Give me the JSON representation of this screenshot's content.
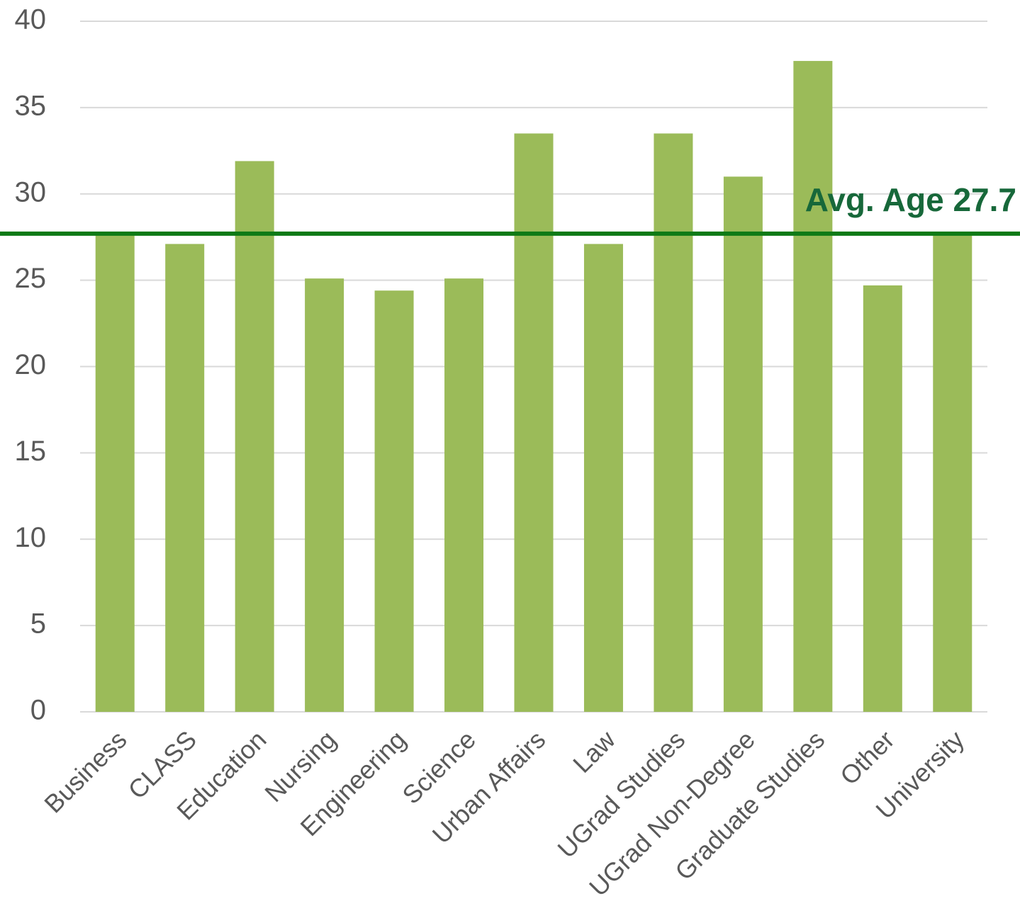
{
  "chart_data": {
    "type": "bar",
    "categories": [
      "Business",
      "CLASS",
      "Education",
      "Nursing",
      "Engineering",
      "Science",
      "Urban Affairs",
      "Law",
      "UGrad Studies",
      "UGrad Non-Degree",
      "Graduate Studies",
      "Other",
      "University"
    ],
    "values": [
      27.7,
      27.1,
      31.9,
      25.1,
      24.4,
      25.1,
      33.5,
      27.1,
      33.5,
      31.0,
      37.7,
      24.7,
      27.7
    ],
    "color": "#9bbb59",
    "ylim": [
      0,
      40
    ],
    "yticks": [
      0,
      5,
      10,
      15,
      20,
      25,
      30,
      35,
      40
    ],
    "grid": true,
    "reference_line": {
      "value": 27.7,
      "label": "Avg. Age 27.7",
      "color": "#0e7a16"
    }
  }
}
